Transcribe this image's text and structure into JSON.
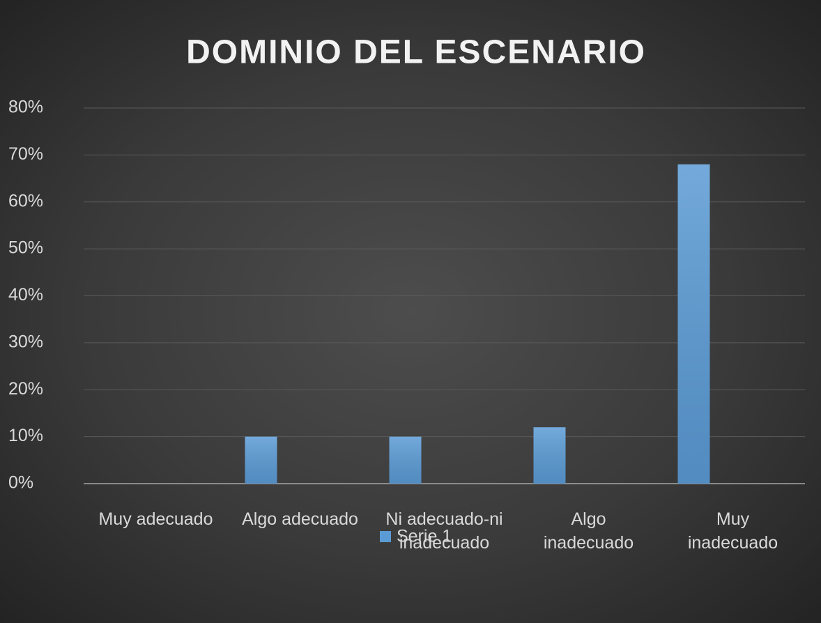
{
  "chart_data": {
    "type": "bar",
    "title": "DOMINIO DEL ESCENARIO",
    "categories": [
      "Muy adecuado",
      "Algo adecuado",
      "Ni adecuado-ni inadecuado",
      "Algo inadecuado",
      "Muy inadecuado"
    ],
    "series": [
      {
        "name": "Serie 1",
        "color": "#5b9bd5",
        "values": [
          0,
          10,
          10,
          12,
          68
        ]
      }
    ],
    "ylim": [
      0,
      80
    ],
    "yticks": [
      {
        "value": 0,
        "label": "0%"
      },
      {
        "value": 10,
        "label": "10%"
      },
      {
        "value": 20,
        "label": "20%"
      },
      {
        "value": 30,
        "label": "30%"
      },
      {
        "value": 40,
        "label": "40%"
      },
      {
        "value": 50,
        "label": "50%"
      },
      {
        "value": 60,
        "label": "60%"
      },
      {
        "value": 70,
        "label": "70%"
      },
      {
        "value": 80,
        "label": "80%"
      }
    ],
    "grid": true,
    "legend": "bottom"
  }
}
